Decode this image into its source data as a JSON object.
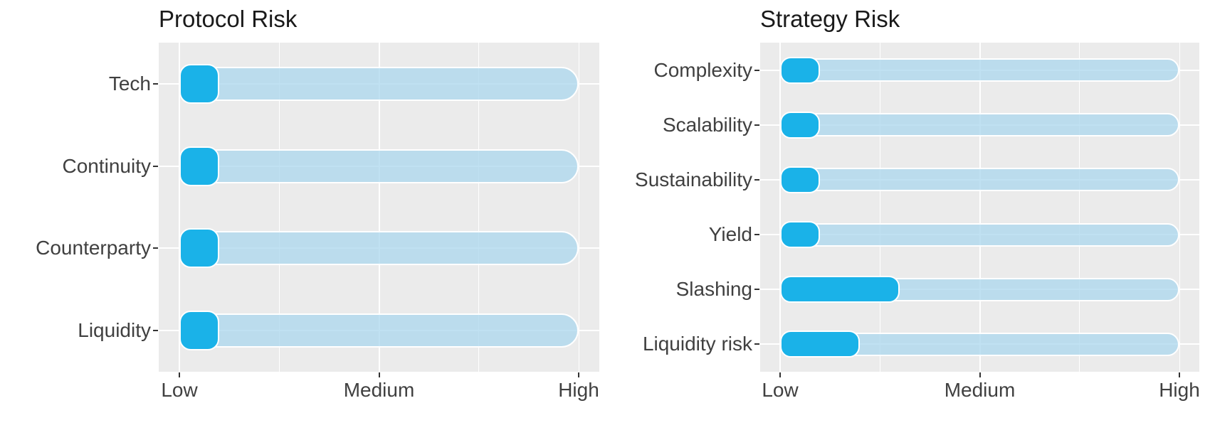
{
  "chart_data": [
    {
      "type": "bar",
      "orientation": "horizontal",
      "title": "Protocol Risk",
      "categories": [
        "Tech",
        "Continuity",
        "Counterparty",
        "Liquidity"
      ],
      "values": [
        1.2,
        1.2,
        1.2,
        1.2
      ],
      "xlim": [
        1,
        3
      ],
      "track_range": [
        1,
        3
      ],
      "x_ticks": [
        {
          "value": 1,
          "label": "Low"
        },
        {
          "value": 2,
          "label": "Medium"
        },
        {
          "value": 3,
          "label": "High"
        }
      ],
      "xlabel": "",
      "ylabel": "",
      "legend": false,
      "grid": true
    },
    {
      "type": "bar",
      "orientation": "horizontal",
      "title": "Strategy Risk",
      "categories": [
        "Complexity",
        "Scalability",
        "Sustainability",
        "Yield",
        "Slashing",
        "Liquidity risk"
      ],
      "values": [
        1.2,
        1.2,
        1.2,
        1.2,
        1.6,
        1.4
      ],
      "xlim": [
        1,
        3
      ],
      "track_range": [
        1,
        3
      ],
      "x_ticks": [
        {
          "value": 1,
          "label": "Low"
        },
        {
          "value": 2,
          "label": "Medium"
        },
        {
          "value": 3,
          "label": "High"
        }
      ],
      "xlabel": "",
      "ylabel": "",
      "legend": false,
      "grid": true
    }
  ],
  "colors": {
    "bar_fill": "#1AB2E8",
    "track_fill": "rgba(167,214,237,0.72)",
    "panel_background": "#EBEBEB",
    "gridline": "#FFFFFF",
    "axis_text": "#404040",
    "title_text": "#1A1A1A",
    "tick_mark": "#333333",
    "page_background": "#FFFFFF"
  }
}
